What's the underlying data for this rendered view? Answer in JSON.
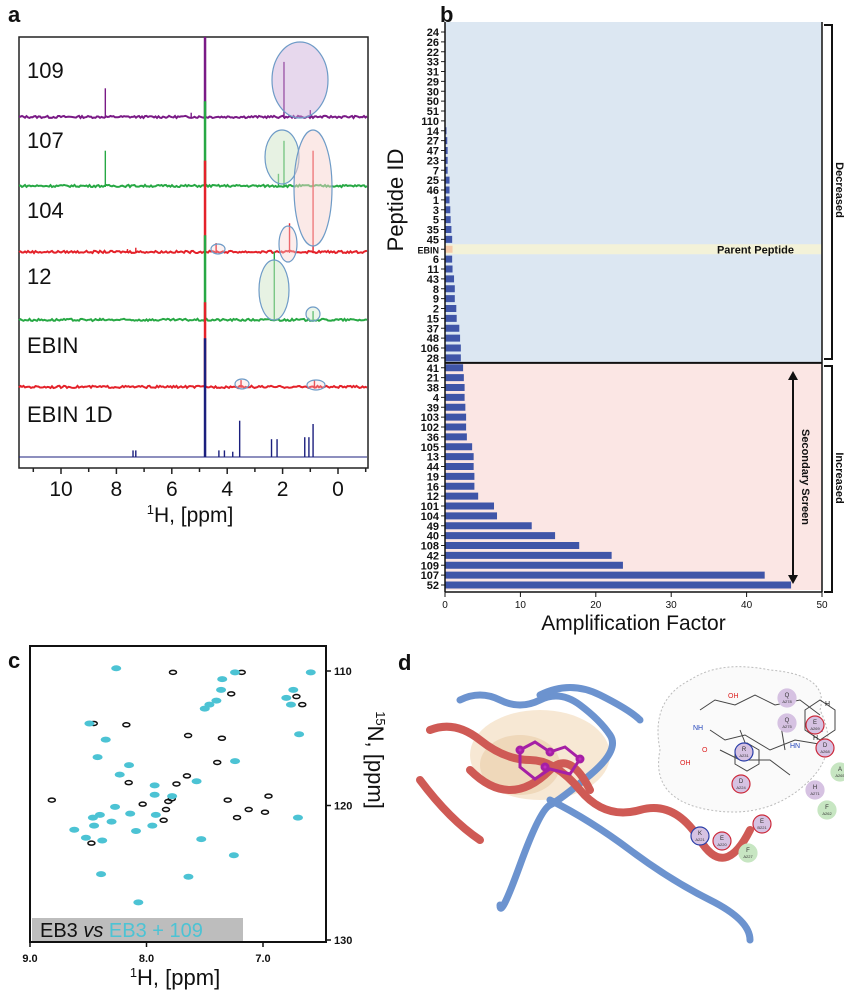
{
  "panels": {
    "a": "a",
    "b": "b",
    "c": "c",
    "d": "d"
  },
  "chart_data": [
    {
      "panel": "a",
      "type": "line",
      "xlabel": "1H, [ppm]",
      "xlabel_sup": "1",
      "xlabel_rest": "H, [ppm]",
      "xlim": [
        11.2,
        -0.9
      ],
      "xticks": [
        10,
        8,
        6,
        4,
        2,
        0
      ],
      "series": [
        {
          "name": "109",
          "color": "#7a1a86",
          "peaks": [
            [
              4.8,
              1.5
            ],
            [
              8.4,
              0.45
            ],
            [
              1.95,
              0.85
            ],
            [
              1.0,
              0.12
            ],
            [
              5.3,
              0.08
            ]
          ]
        },
        {
          "name": "107",
          "color": "#27a844",
          "peaks": [
            [
              4.8,
              1.3
            ],
            [
              8.4,
              0.55
            ],
            [
              1.95,
              0.7
            ],
            [
              2.15,
              0.2
            ],
            [
              0.9,
              0.1
            ]
          ]
        },
        {
          "name": "104",
          "color": "#e4222a",
          "peaks": [
            [
              4.8,
              1.4
            ],
            [
              0.9,
              1.55
            ],
            [
              1.75,
              0.45
            ],
            [
              4.4,
              0.15
            ],
            [
              7.3,
              0.08
            ],
            [
              7.6,
              0.06
            ]
          ]
        },
        {
          "name": "12",
          "color": "#27a844",
          "peaks": [
            [
              4.8,
              1.3
            ],
            [
              2.3,
              1.05
            ],
            [
              0.9,
              0.15
            ],
            [
              8.6,
              0.05
            ]
          ]
        },
        {
          "name": "EBIN",
          "color": "#e4222a",
          "peaks": [
            [
              4.8,
              1.3
            ],
            [
              3.5,
              0.12
            ],
            [
              0.85,
              0.12
            ]
          ]
        },
        {
          "name": "EBIN 1D",
          "color": "#1b1f7e",
          "peaks": [
            [
              4.8,
              1.8
            ],
            [
              3.55,
              0.55
            ],
            [
              2.4,
              0.27
            ],
            [
              2.2,
              0.27
            ],
            [
              1.2,
              0.3
            ],
            [
              1.05,
              0.3
            ],
            [
              0.9,
              0.5
            ],
            [
              7.4,
              0.1
            ],
            [
              7.3,
              0.1
            ],
            [
              4.3,
              0.1
            ],
            [
              4.1,
              0.1
            ],
            [
              3.8,
              0.08
            ]
          ]
        }
      ]
    },
    {
      "panel": "b",
      "type": "bar",
      "orientation": "horizontal",
      "xlabel": "Amplification Factor",
      "ylabel": "Peptide ID",
      "xlim": [
        0,
        50
      ],
      "xticks": [
        0,
        10,
        20,
        30,
        40,
        50
      ],
      "bar_color": "#3f55a8",
      "parent_color": "#f5c9a8",
      "categories": [
        "24",
        "26",
        "22",
        "33",
        "31",
        "29",
        "30",
        "50",
        "51",
        "110",
        "14",
        "27",
        "47",
        "23",
        "7",
        "25",
        "46",
        "1",
        "3",
        "5",
        "35",
        "45",
        "EBIN",
        "6",
        "11",
        "43",
        "8",
        "9",
        "2",
        "15",
        "37",
        "48",
        "106",
        "28",
        "41",
        "21",
        "38",
        "4",
        "39",
        "103",
        "102",
        "36",
        "105",
        "13",
        "44",
        "19",
        "16",
        "12",
        "101",
        "104",
        "49",
        "40",
        "108",
        "42",
        "109",
        "107",
        "52"
      ],
      "values": [
        0,
        0,
        0,
        0,
        0,
        0,
        0,
        0,
        0,
        0,
        0.2,
        0.3,
        0.35,
        0.35,
        0.35,
        0.6,
        0.6,
        0.6,
        0.7,
        0.75,
        0.85,
        0.95,
        1.0,
        0.95,
        1.0,
        1.2,
        1.3,
        1.3,
        1.5,
        1.55,
        1.9,
        2.0,
        2.1,
        2.1,
        2.4,
        2.5,
        2.6,
        2.6,
        2.7,
        2.8,
        2.8,
        2.9,
        3.6,
        3.8,
        3.8,
        3.9,
        3.9,
        4.4,
        6.5,
        6.9,
        11.5,
        14.6,
        17.8,
        22.1,
        23.6,
        42.4,
        45.9
      ],
      "groups": [
        {
          "label": "Decreased",
          "color": "#dce7f2",
          "from": "24",
          "to": "28"
        },
        {
          "label": "Increased",
          "color": "#fbe6e4",
          "from": "41",
          "to": "52"
        }
      ],
      "parent_label": "Parent Peptide",
      "parent_band_color": "#f3f2d8",
      "secondary_label": "Secondary Screen"
    },
    {
      "panel": "c",
      "type": "scatter",
      "xlabel_sup": "1",
      "xlabel_rest": "H, [ppm]",
      "ylabel_sup": "15",
      "ylabel_rest": "N, [ppm]",
      "xlim": [
        9.0,
        6.45
      ],
      "ylim": [
        130,
        108.8
      ],
      "xticks": [
        "9.0",
        "8.0",
        "7.0"
      ],
      "yticks": [
        "110",
        "120",
        "130"
      ],
      "legend": {
        "a": "EB3",
        "vs": "vs",
        "b": "EB3 + 109"
      },
      "series": [
        {
          "name": "EB3",
          "color": "#111111",
          "points": [
            [
              7.79,
              110.1
            ],
            [
              7.2,
              110.1
            ],
            [
              7.29,
              111.7
            ],
            [
              7.66,
              114.8
            ],
            [
              7.37,
              115.0
            ],
            [
              7.41,
              116.8
            ],
            [
              7.67,
              117.8
            ],
            [
              7.76,
              118.4
            ],
            [
              8.17,
              118.3
            ],
            [
              8.19,
              114.0
            ],
            [
              7.83,
              119.7
            ],
            [
              7.85,
              120.3
            ],
            [
              8.05,
              119.9
            ],
            [
              7.32,
              119.6
            ],
            [
              7.14,
              120.3
            ],
            [
              7.0,
              120.5
            ],
            [
              6.97,
              119.3
            ],
            [
              7.24,
              120.9
            ],
            [
              8.83,
              119.6
            ],
            [
              6.68,
              112.5
            ],
            [
              8.49,
              122.8
            ],
            [
              7.87,
              121.1
            ],
            [
              7.8,
              119.5
            ],
            [
              6.73,
              111.9
            ],
            [
              8.47,
              113.9
            ]
          ]
        },
        {
          "name": "EB3 + 109",
          "color": "#4cc3d4",
          "points": [
            [
              8.26,
              109.8
            ],
            [
              7.24,
              110.1
            ],
            [
              7.35,
              110.6
            ],
            [
              7.36,
              111.4
            ],
            [
              7.46,
              112.5
            ],
            [
              7.5,
              112.8
            ],
            [
              6.74,
              111.4
            ],
            [
              6.76,
              112.5
            ],
            [
              6.59,
              110.1
            ],
            [
              6.69,
              114.7
            ],
            [
              8.49,
              113.9
            ],
            [
              8.35,
              115.1
            ],
            [
              8.42,
              116.4
            ],
            [
              8.15,
              117.0
            ],
            [
              8.23,
              117.7
            ],
            [
              7.93,
              118.5
            ],
            [
              7.93,
              119.2
            ],
            [
              8.27,
              120.1
            ],
            [
              8.4,
              120.7
            ],
            [
              8.46,
              120.9
            ],
            [
              8.62,
              121.8
            ],
            [
              8.52,
              122.4
            ],
            [
              8.38,
              122.6
            ],
            [
              8.09,
              121.9
            ],
            [
              7.95,
              121.5
            ],
            [
              8.14,
              120.6
            ],
            [
              7.92,
              120.7
            ],
            [
              7.53,
              122.5
            ],
            [
              7.25,
              123.7
            ],
            [
              8.39,
              125.1
            ],
            [
              7.64,
              125.3
            ],
            [
              8.07,
              127.2
            ],
            [
              7.24,
              116.7
            ],
            [
              7.57,
              118.2
            ],
            [
              7.78,
              119.3
            ],
            [
              6.7,
              120.9
            ],
            [
              7.4,
              112.2
            ],
            [
              6.8,
              112.0
            ],
            [
              8.3,
              121.2
            ],
            [
              8.45,
              121.5
            ]
          ]
        }
      ]
    }
  ],
  "panel_d": {
    "residues": [
      {
        "code": "Q",
        "id": "A278",
        "kind": "polar"
      },
      {
        "code": "Q",
        "id": "A275",
        "kind": "polar"
      },
      {
        "code": "E",
        "id": "A269",
        "kind": "acidic"
      },
      {
        "code": "D",
        "id": "A268",
        "kind": "acidic"
      },
      {
        "code": "A",
        "id": "A265",
        "kind": "hydrophobic"
      },
      {
        "code": "H",
        "id": "A271",
        "kind": "polar"
      },
      {
        "code": "F",
        "id": "A262",
        "kind": "hydrophobic"
      },
      {
        "code": "E",
        "id": "B221",
        "kind": "acidic"
      },
      {
        "code": "D",
        "id": "A224",
        "kind": "acidic"
      },
      {
        "code": "R",
        "id": "A231",
        "kind": "basic"
      },
      {
        "code": "E",
        "id": "A220",
        "kind": "acidic"
      },
      {
        "code": "K",
        "id": "A221",
        "kind": "basic"
      },
      {
        "code": "F",
        "id": "A227",
        "kind": "hydrophobic"
      }
    ],
    "atom_labels": [
      "OH",
      "NH",
      "HN",
      "N",
      "O",
      "OH",
      "H",
      "H"
    ]
  }
}
